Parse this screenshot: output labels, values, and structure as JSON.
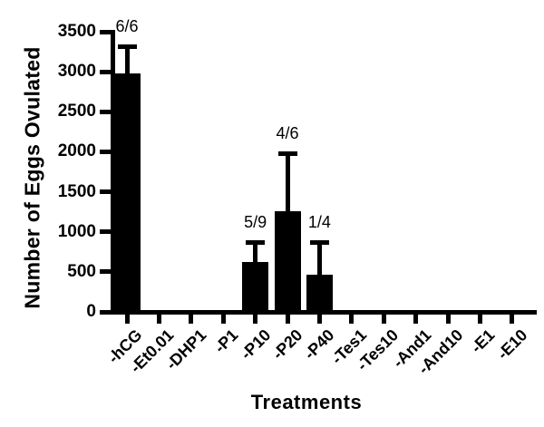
{
  "figure": {
    "background_color": "#ffffff",
    "ink_color": "#000000"
  },
  "chart_data": {
    "type": "bar",
    "title": "",
    "xlabel": "Treatments",
    "ylabel": "Number of Eggs Ovulated",
    "ylim": [
      0,
      3500
    ],
    "ytick_step": 500,
    "ytick_labels": [
      "0",
      "500",
      "1000",
      "1500",
      "2000",
      "2500",
      "3000",
      "3500"
    ],
    "grid": false,
    "legend": false,
    "bar_color": "#000000",
    "error_bar_style": "upper_only",
    "categories": [
      "-hCG",
      "-Et0.01",
      "-DHP1",
      "-P1",
      "-P10",
      "-P20",
      "-P40",
      "-Tes1",
      "-Tes10",
      "-And1",
      "-And10",
      "-E1",
      "-E10"
    ],
    "values": [
      2980,
      0,
      0,
      0,
      620,
      1260,
      460,
      0,
      0,
      0,
      0,
      0,
      0
    ],
    "errors_plus": [
      360,
      0,
      0,
      0,
      275,
      740,
      440,
      0,
      0,
      0,
      0,
      0,
      0
    ],
    "bar_labels": [
      "6/6",
      "",
      "",
      "",
      "5/9",
      "4/6",
      "1/4",
      "",
      "",
      "",
      "",
      "",
      ""
    ]
  }
}
